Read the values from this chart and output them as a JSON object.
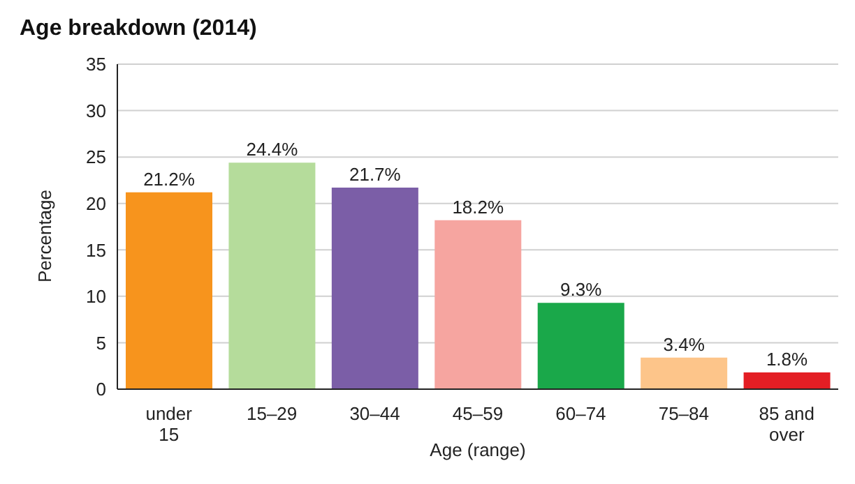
{
  "chart_data": {
    "type": "bar",
    "title": "Age breakdown (2014)",
    "xlabel": "Age (range)",
    "ylabel": "Percentage",
    "categories": [
      "under 15",
      "15–29",
      "30–44",
      "45–59",
      "60–74",
      "75–84",
      "85 and over"
    ],
    "values": [
      21.2,
      24.4,
      21.7,
      18.2,
      9.3,
      3.4,
      1.8
    ],
    "value_labels": [
      "21.2%",
      "24.4%",
      "21.7%",
      "18.2%",
      "9.3%",
      "3.4%",
      "1.8%"
    ],
    "colors": [
      "#f7941d",
      "#b5dc9b",
      "#7b5ea7",
      "#f6a5a0",
      "#1aa84a",
      "#fdc58a",
      "#e31e24"
    ],
    "ylim": [
      0,
      35
    ],
    "yticks": [
      0,
      5,
      10,
      15,
      20,
      25,
      30,
      35
    ],
    "grid": "y"
  }
}
